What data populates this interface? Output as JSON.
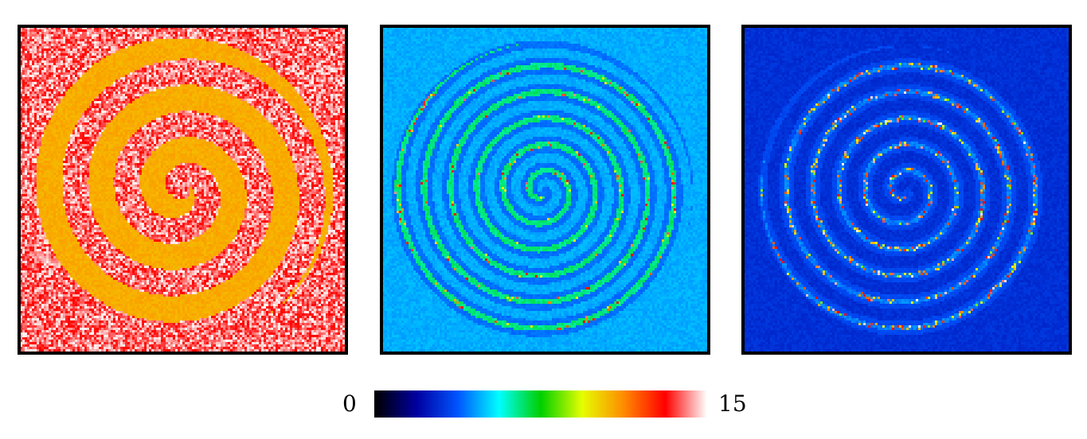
{
  "figure": {
    "panels": [
      {
        "id": "panel-1",
        "colormap_level": "high",
        "description_icon": "spiral-pattern-red-yellow"
      },
      {
        "id": "panel-2",
        "colormap_level": "medium",
        "description_icon": "spiral-pattern-blue-cyan"
      },
      {
        "id": "panel-3",
        "colormap_level": "low",
        "description_icon": "spiral-pattern-dark-blue"
      }
    ],
    "colorbar": {
      "min_label": "0",
      "max_label": "15",
      "stops": [
        "#000000",
        "#0000a0",
        "#0055ff",
        "#00ffff",
        "#00d000",
        "#e6ff00",
        "#ff8c00",
        "#ff0000",
        "#ffffff"
      ]
    }
  }
}
